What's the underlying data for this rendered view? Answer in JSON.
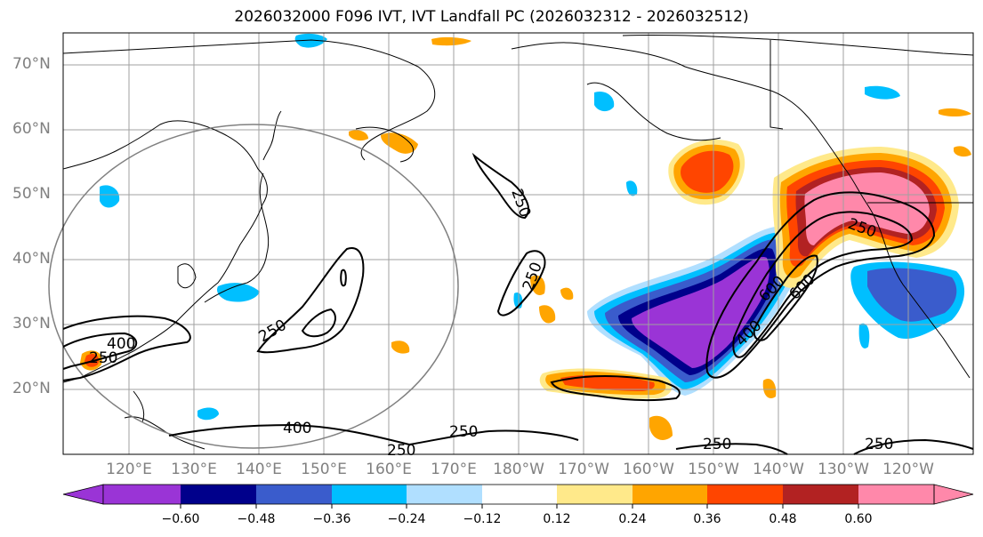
{
  "title": "2026032000 F096 IVT, IVT Landfall PC (2026032312 - 2026032512)",
  "lat_labels": [
    "70°N",
    "60°N",
    "50°N",
    "40°N",
    "30°N",
    "20°N"
  ],
  "lon_labels": [
    "120°E",
    "130°E",
    "140°E",
    "150°E",
    "160°E",
    "170°E",
    "180°W",
    "170°W",
    "160°W",
    "150°W",
    "140°W",
    "130°W",
    "120°W"
  ],
  "contour_labels": [
    "250",
    "400",
    "250",
    "250",
    "250",
    "400",
    "250",
    "250",
    "250",
    "250",
    "600",
    "600",
    "400",
    "250",
    "250"
  ],
  "colorbar": {
    "ticks": [
      "−0.60",
      "−0.48",
      "−0.36",
      "−0.24",
      "−0.12",
      "0.12",
      "0.24",
      "0.36",
      "0.48",
      "0.60"
    ],
    "colors": [
      "#9a34d6",
      "#00008b",
      "#3a5ccc",
      "#00bfff",
      "#b0dfff",
      "#ffffff",
      "#ffe98a",
      "#ffa500",
      "#ff4500",
      "#b22222",
      "#ff88aa"
    ]
  },
  "map_colors": {
    "pos_low": "#ffe98a",
    "pos_mid": "#ffa500",
    "pos_high": "#ff4500",
    "pos_top": "#b22222",
    "pos_max": "#ff88aa",
    "neg_low": "#b0dfff",
    "neg_mid": "#00bfff",
    "neg_high": "#3a5ccc",
    "neg_top": "#00008b",
    "neg_max": "#9a34d6"
  }
}
